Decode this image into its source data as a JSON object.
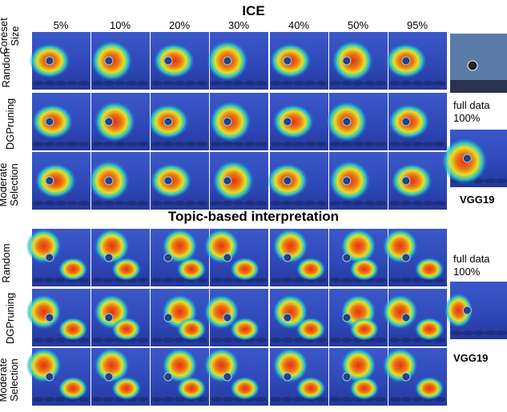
{
  "sections": [
    {
      "title": "ICE",
      "row_labels": [
        "Random",
        "DGPruning",
        "Moderate\nSelection"
      ],
      "header_label": "Coreset\nSize",
      "side_note": "full data\n100%",
      "model": "VGG19"
    },
    {
      "title": "Topic-based interpretation",
      "row_labels": [
        "Random",
        "DGPruning",
        "Moderate\nSelection"
      ],
      "side_note": "full data\n100%",
      "model": "VGG19"
    }
  ],
  "coreset_sizes": [
    "5%",
    "10%",
    "20%",
    "30%",
    "40%",
    "50%",
    "95%"
  ],
  "colors": {
    "water": "#3f56a8",
    "cool": "#1f3fd0",
    "warm": "#ff2a00",
    "mid": "#27d0c6",
    "yellow": "#f8f01a"
  }
}
